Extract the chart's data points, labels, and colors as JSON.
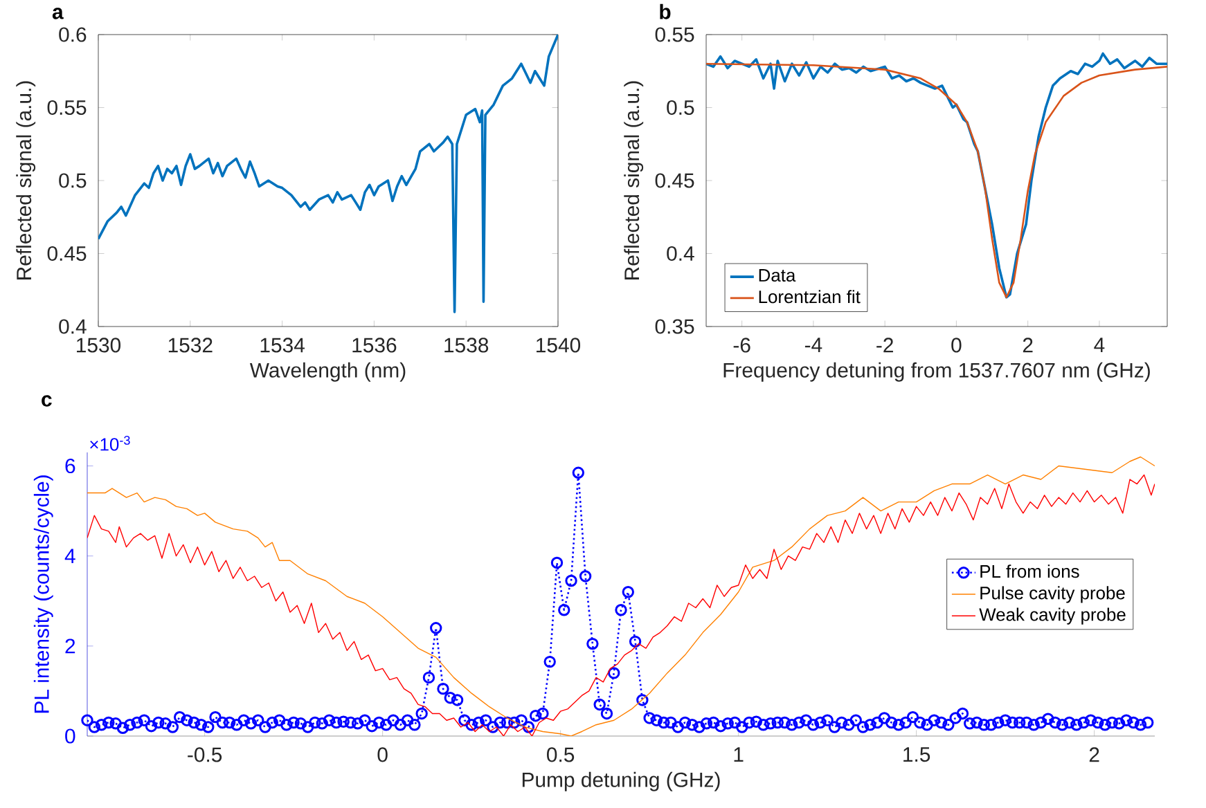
{
  "chart_data": [
    {
      "type": "line",
      "title": "a",
      "xlabel": "Wavelength (nm)",
      "ylabel": "Reflected signal (a.u.)",
      "xlim": [
        1530,
        1540
      ],
      "ylim": [
        0.4,
        0.6
      ],
      "xticks": [
        1530,
        1532,
        1534,
        1536,
        1538,
        1540
      ],
      "yticks": [
        0.4,
        0.45,
        0.5,
        0.55,
        0.6
      ],
      "grid": false,
      "legend": false,
      "series": [
        {
          "color": "#0072bd",
          "x": [
            1530,
            1530.2,
            1530.4,
            1530.5,
            1530.6,
            1530.8,
            1531,
            1531.1,
            1531.2,
            1531.3,
            1531.4,
            1531.5,
            1531.6,
            1531.7,
            1531.8,
            1531.9,
            1532,
            1532.1,
            1532.2,
            1532.4,
            1532.5,
            1532.6,
            1532.7,
            1532.8,
            1533,
            1533.1,
            1533.2,
            1533.3,
            1533.4,
            1533.5,
            1533.7,
            1533.9,
            1534,
            1534.2,
            1534.4,
            1534.5,
            1534.6,
            1534.8,
            1535,
            1535.1,
            1535.2,
            1535.3,
            1535.5,
            1535.6,
            1535.7,
            1535.8,
            1535.9,
            1536,
            1536.1,
            1536.3,
            1536.4,
            1536.5,
            1536.6,
            1536.7,
            1536.9,
            1537,
            1537.2,
            1537.3,
            1537.5,
            1537.6,
            1537.7,
            1537.75,
            1537.8,
            1538,
            1538.2,
            1538.3,
            1538.35,
            1538.38,
            1538.42,
            1538.6,
            1538.8,
            1539,
            1539.2,
            1539.4,
            1539.5,
            1539.6,
            1539.7,
            1539.8,
            1540
          ],
          "values": [
            0.46,
            0.472,
            0.478,
            0.482,
            0.476,
            0.49,
            0.498,
            0.495,
            0.505,
            0.51,
            0.5,
            0.508,
            0.505,
            0.51,
            0.497,
            0.51,
            0.518,
            0.508,
            0.51,
            0.515,
            0.505,
            0.512,
            0.503,
            0.51,
            0.515,
            0.508,
            0.502,
            0.513,
            0.505,
            0.496,
            0.5,
            0.496,
            0.495,
            0.49,
            0.482,
            0.485,
            0.48,
            0.487,
            0.49,
            0.485,
            0.492,
            0.487,
            0.49,
            0.485,
            0.48,
            0.492,
            0.497,
            0.49,
            0.496,
            0.5,
            0.486,
            0.496,
            0.503,
            0.497,
            0.508,
            0.52,
            0.525,
            0.52,
            0.526,
            0.53,
            0.525,
            0.41,
            0.525,
            0.545,
            0.549,
            0.54,
            0.548,
            0.417,
            0.545,
            0.552,
            0.565,
            0.57,
            0.58,
            0.567,
            0.575,
            0.57,
            0.565,
            0.585,
            0.6
          ]
        }
      ]
    },
    {
      "type": "line",
      "title": "b",
      "xlabel": "Frequency detuning from 1537.7607 nm (GHz)",
      "ylabel": "Reflected signal (a.u.)",
      "xlim": [
        -7,
        5.9
      ],
      "ylim": [
        0.35,
        0.55
      ],
      "xticks": [
        -6,
        -4,
        -2,
        0,
        2,
        4
      ],
      "yticks": [
        0.35,
        0.4,
        0.45,
        0.5,
        0.55
      ],
      "grid": false,
      "legend": "bottom left",
      "series": [
        {
          "name": "Data",
          "color": "#0072bd",
          "x": [
            -7,
            -6.8,
            -6.6,
            -6.4,
            -6.2,
            -6,
            -5.8,
            -5.6,
            -5.4,
            -5.2,
            -5.1,
            -5,
            -4.8,
            -4.6,
            -4.4,
            -4.2,
            -4,
            -3.8,
            -3.6,
            -3.4,
            -3.2,
            -3,
            -2.8,
            -2.6,
            -2.4,
            -2,
            -1.8,
            -1.6,
            -1.4,
            -1.2,
            -1,
            -0.8,
            -0.6,
            -0.4,
            -0.3,
            -0.1,
            0,
            0.2,
            0.3,
            0.5,
            0.6,
            0.8,
            1,
            1.2,
            1.4,
            1.5,
            1.7,
            1.95,
            2.1,
            2.3,
            2.5,
            2.7,
            2.9,
            3.2,
            3.4,
            3.6,
            3.8,
            4,
            4.1,
            4.3,
            4.5,
            4.7,
            5,
            5.2,
            5.4,
            5.6,
            5.9
          ],
          "values": [
            0.53,
            0.528,
            0.535,
            0.527,
            0.532,
            0.53,
            0.528,
            0.533,
            0.52,
            0.53,
            0.513,
            0.532,
            0.518,
            0.53,
            0.522,
            0.531,
            0.52,
            0.528,
            0.524,
            0.53,
            0.526,
            0.527,
            0.524,
            0.528,
            0.525,
            0.528,
            0.52,
            0.522,
            0.518,
            0.52,
            0.517,
            0.515,
            0.513,
            0.515,
            0.51,
            0.5,
            0.502,
            0.492,
            0.49,
            0.475,
            0.47,
            0.445,
            0.42,
            0.39,
            0.37,
            0.372,
            0.4,
            0.42,
            0.45,
            0.48,
            0.5,
            0.515,
            0.52,
            0.525,
            0.523,
            0.53,
            0.528,
            0.532,
            0.537,
            0.53,
            0.533,
            0.527,
            0.532,
            0.528,
            0.534,
            0.53,
            0.53
          ]
        },
        {
          "name": "Lorentzian fit",
          "color": "#d95319",
          "x": [
            -7,
            -4,
            -2,
            -1,
            -0.5,
            0,
            0.3,
            0.6,
            0.8,
            1,
            1.2,
            1.4,
            1.6,
            1.8,
            2,
            2.2,
            2.5,
            3,
            3.5,
            4,
            5,
            5.9
          ],
          "values": [
            0.53,
            0.529,
            0.526,
            0.52,
            0.513,
            0.502,
            0.49,
            0.47,
            0.445,
            0.41,
            0.38,
            0.37,
            0.38,
            0.41,
            0.443,
            0.468,
            0.49,
            0.508,
            0.517,
            0.522,
            0.526,
            0.528
          ]
        }
      ]
    },
    {
      "type": "line",
      "title": "c",
      "xlabel": "Pump detuning (GHz)",
      "ylabel": "PL intensity (counts/cycle)",
      "annotations": [
        "×10$^{-3}$"
      ],
      "xlim": [
        -0.83,
        2.17
      ],
      "ylim": [
        0,
        6.3
      ],
      "xticks": [
        -0.5,
        0,
        0.5,
        1,
        1.5,
        2
      ],
      "yticks": [
        0,
        2,
        4,
        6
      ],
      "grid": false,
      "legend": "right",
      "series": [
        {
          "name": "PL from ions",
          "color": "#0000ff",
          "marker": "circle",
          "line_style": "dotted",
          "x": [
            -0.83,
            -0.81,
            -0.79,
            -0.77,
            -0.75,
            -0.73,
            -0.71,
            -0.69,
            -0.67,
            -0.65,
            -0.63,
            -0.61,
            -0.59,
            -0.57,
            -0.55,
            -0.53,
            -0.51,
            -0.49,
            -0.47,
            -0.45,
            -0.43,
            -0.41,
            -0.39,
            -0.37,
            -0.35,
            -0.33,
            -0.31,
            -0.29,
            -0.27,
            -0.25,
            -0.23,
            -0.21,
            -0.19,
            -0.17,
            -0.15,
            -0.13,
            -0.11,
            -0.09,
            -0.07,
            -0.05,
            -0.03,
            -0.01,
            0.01,
            0.03,
            0.05,
            0.07,
            0.09,
            0.11,
            0.13,
            0.15,
            0.17,
            0.19,
            0.21,
            0.23,
            0.25,
            0.27,
            0.29,
            0.31,
            0.33,
            0.35,
            0.37,
            0.39,
            0.41,
            0.43,
            0.45,
            0.47,
            0.49,
            0.51,
            0.53,
            0.55,
            0.57,
            0.59,
            0.61,
            0.63,
            0.65,
            0.67,
            0.69,
            0.71,
            0.73,
            0.75,
            0.77,
            0.79,
            0.81,
            0.83,
            0.85,
            0.87,
            0.89,
            0.91,
            0.93,
            0.95,
            0.97,
            0.99,
            1.01,
            1.03,
            1.05,
            1.07,
            1.09,
            1.11,
            1.13,
            1.15,
            1.17,
            1.19,
            1.21,
            1.23,
            1.25,
            1.27,
            1.29,
            1.31,
            1.33,
            1.35,
            1.37,
            1.39,
            1.41,
            1.43,
            1.45,
            1.47,
            1.49,
            1.51,
            1.53,
            1.55,
            1.57,
            1.59,
            1.61,
            1.63,
            1.65,
            1.67,
            1.69,
            1.71,
            1.73,
            1.75,
            1.77,
            1.79,
            1.81,
            1.83,
            1.85,
            1.87,
            1.89,
            1.91,
            1.93,
            1.95,
            1.97,
            1.99,
            2.01,
            2.03,
            2.05,
            2.07,
            2.09,
            2.11,
            2.13,
            2.15
          ],
          "values": [
            0.35,
            0.2,
            0.25,
            0.3,
            0.28,
            0.18,
            0.25,
            0.3,
            0.35,
            0.22,
            0.3,
            0.28,
            0.2,
            0.42,
            0.35,
            0.3,
            0.25,
            0.2,
            0.42,
            0.3,
            0.3,
            0.25,
            0.35,
            0.28,
            0.35,
            0.2,
            0.3,
            0.35,
            0.25,
            0.3,
            0.28,
            0.2,
            0.3,
            0.28,
            0.35,
            0.3,
            0.32,
            0.3,
            0.28,
            0.35,
            0.22,
            0.3,
            0.25,
            0.35,
            0.25,
            0.35,
            0.25,
            0.5,
            1.3,
            2.4,
            1.05,
            0.85,
            0.8,
            0.35,
            0.25,
            0.3,
            0.35,
            0.2,
            0.3,
            0.3,
            0.3,
            0.35,
            0.2,
            0.45,
            0.5,
            1.65,
            3.85,
            2.8,
            3.45,
            5.85,
            3.55,
            2.05,
            0.7,
            0.5,
            1.4,
            2.8,
            3.2,
            2.1,
            0.8,
            0.4,
            0.35,
            0.3,
            0.3,
            0.2,
            0.3,
            0.25,
            0.2,
            0.28,
            0.3,
            0.22,
            0.28,
            0.3,
            0.2,
            0.3,
            0.32,
            0.25,
            0.28,
            0.3,
            0.3,
            0.25,
            0.3,
            0.35,
            0.25,
            0.3,
            0.35,
            0.2,
            0.3,
            0.25,
            0.35,
            0.2,
            0.25,
            0.3,
            0.4,
            0.3,
            0.25,
            0.3,
            0.42,
            0.3,
            0.25,
            0.35,
            0.3,
            0.25,
            0.4,
            0.5,
            0.28,
            0.3,
            0.25,
            0.25,
            0.3,
            0.35,
            0.3,
            0.3,
            0.3,
            0.25,
            0.3,
            0.38,
            0.3,
            0.25,
            0.3,
            0.25,
            0.3,
            0.35,
            0.3,
            0.25,
            0.3,
            0.28,
            0.35,
            0.3,
            0.25,
            0.3
          ]
        },
        {
          "name": "Pulse cavity probe",
          "color": "#ff8000",
          "x": [
            -0.83,
            -0.78,
            -0.76,
            -0.72,
            -0.69,
            -0.67,
            -0.64,
            -0.61,
            -0.58,
            -0.55,
            -0.52,
            -0.5,
            -0.47,
            -0.42,
            -0.38,
            -0.35,
            -0.33,
            -0.31,
            -0.29,
            -0.26,
            -0.21,
            -0.16,
            -0.1,
            -0.05,
            0,
            0.05,
            0.1,
            0.15,
            0.2,
            0.25,
            0.3,
            0.35,
            0.4,
            0.45,
            0.5,
            0.53,
            0.56,
            0.6,
            0.65,
            0.7,
            0.75,
            0.8,
            0.85,
            0.9,
            0.95,
            1,
            1.04,
            1.1,
            1.15,
            1.2,
            1.25,
            1.3,
            1.35,
            1.4,
            1.45,
            1.5,
            1.55,
            1.6,
            1.65,
            1.7,
            1.75,
            1.8,
            1.85,
            1.9,
            1.95,
            2,
            2.05,
            2.1,
            2.13,
            2.17
          ],
          "values": [
            5.4,
            5.4,
            5.5,
            5.3,
            5.4,
            5.2,
            5.3,
            5.25,
            5.1,
            5.05,
            4.9,
            4.95,
            4.75,
            4.6,
            4.55,
            4.4,
            4.2,
            4.3,
            3.9,
            3.9,
            3.6,
            3.45,
            3.1,
            2.95,
            2.65,
            2.3,
            1.95,
            1.75,
            1.3,
            0.95,
            0.65,
            0.4,
            0.2,
            0.1,
            0.05,
            0,
            0.1,
            0.25,
            0.35,
            0.6,
            0.95,
            1.4,
            1.8,
            2.3,
            2.7,
            3.2,
            3.75,
            3.9,
            4.2,
            4.6,
            4.9,
            5,
            5.3,
            5,
            5.2,
            5.2,
            5.45,
            5.6,
            5.6,
            5.8,
            5.6,
            5.8,
            5.7,
            6,
            5.95,
            5.9,
            5.85,
            6.1,
            6.2,
            6
          ]
        },
        {
          "name": "Weak cavity probe",
          "color": "#ff0000",
          "x": [
            -0.83,
            -0.81,
            -0.79,
            -0.77,
            -0.75,
            -0.74,
            -0.72,
            -0.7,
            -0.68,
            -0.66,
            -0.64,
            -0.62,
            -0.6,
            -0.58,
            -0.56,
            -0.54,
            -0.52,
            -0.5,
            -0.48,
            -0.46,
            -0.44,
            -0.42,
            -0.4,
            -0.38,
            -0.36,
            -0.34,
            -0.32,
            -0.3,
            -0.28,
            -0.26,
            -0.24,
            -0.22,
            -0.2,
            -0.18,
            -0.16,
            -0.14,
            -0.12,
            -0.1,
            -0.08,
            -0.06,
            -0.04,
            -0.02,
            0,
            0.02,
            0.04,
            0.06,
            0.08,
            0.1,
            0.12,
            0.14,
            0.16,
            0.18,
            0.2,
            0.22,
            0.24,
            0.26,
            0.28,
            0.3,
            0.32,
            0.34,
            0.36,
            0.38,
            0.4,
            0.42,
            0.44,
            0.46,
            0.48,
            0.5,
            0.52,
            0.54,
            0.56,
            0.58,
            0.6,
            0.62,
            0.64,
            0.66,
            0.68,
            0.7,
            0.72,
            0.74,
            0.76,
            0.78,
            0.8,
            0.82,
            0.84,
            0.86,
            0.88,
            0.9,
            0.92,
            0.94,
            0.96,
            0.98,
            1,
            1.02,
            1.04,
            1.06,
            1.08,
            1.1,
            1.12,
            1.14,
            1.16,
            1.18,
            1.2,
            1.22,
            1.24,
            1.26,
            1.28,
            1.3,
            1.32,
            1.34,
            1.36,
            1.38,
            1.4,
            1.42,
            1.44,
            1.46,
            1.48,
            1.5,
            1.52,
            1.54,
            1.56,
            1.58,
            1.6,
            1.62,
            1.64,
            1.66,
            1.68,
            1.7,
            1.72,
            1.74,
            1.76,
            1.78,
            1.8,
            1.82,
            1.84,
            1.86,
            1.88,
            1.9,
            1.92,
            1.94,
            1.96,
            1.98,
            2,
            2.02,
            2.04,
            2.06,
            2.08,
            2.1,
            2.12,
            2.14,
            2.16,
            2.17
          ],
          "values": [
            4.4,
            4.9,
            4.6,
            4.55,
            4.3,
            4.65,
            4.2,
            4.4,
            4.5,
            4.35,
            4.45,
            3.95,
            4.5,
            4,
            4.25,
            3.85,
            4.2,
            3.8,
            4.1,
            3.65,
            3.9,
            3.5,
            3.75,
            3.45,
            3.55,
            3.3,
            3.4,
            3,
            3.2,
            2.75,
            2.9,
            2.5,
            2.95,
            2.3,
            2.5,
            2.15,
            2.3,
            1.9,
            2.1,
            1.7,
            1.8,
            1.45,
            1.5,
            1.25,
            1.3,
            1.05,
            0.95,
            0.7,
            0.65,
            0.5,
            0.5,
            0.35,
            0.4,
            0.2,
            0.3,
            0.1,
            0.25,
            0.1,
            0.2,
            0,
            0.25,
            0.1,
            0.2,
            0,
            0.3,
            0.4,
            0.35,
            0.55,
            0.6,
            0.75,
            0.9,
            1,
            1.3,
            1.2,
            1.5,
            1.6,
            1.8,
            1.9,
            2.05,
            1.95,
            2.2,
            2.3,
            2.45,
            2.65,
            2.55,
            2.95,
            2.85,
            3.05,
            2.85,
            3.35,
            3.1,
            3.3,
            3.35,
            3.8,
            3.5,
            3.7,
            3.5,
            4.15,
            3.7,
            4,
            3.9,
            4.2,
            4.15,
            4.5,
            4.3,
            4.65,
            4.3,
            4.8,
            4.5,
            4.95,
            4.6,
            4.9,
            4.5,
            4.95,
            4.6,
            5.05,
            4.75,
            5.1,
            4.9,
            5.2,
            4.9,
            5.3,
            5,
            5.4,
            5.15,
            4.8,
            5.3,
            5.15,
            5.5,
            5.05,
            5.6,
            5.2,
            4.95,
            5.2,
            5.05,
            5.35,
            5.1,
            5.3,
            5.15,
            5.4,
            5.2,
            5.45,
            5.2,
            5.35,
            5.15,
            5.3,
            4.95,
            5.7,
            5.6,
            5.8,
            5.35,
            5.6
          ]
        }
      ]
    }
  ]
}
